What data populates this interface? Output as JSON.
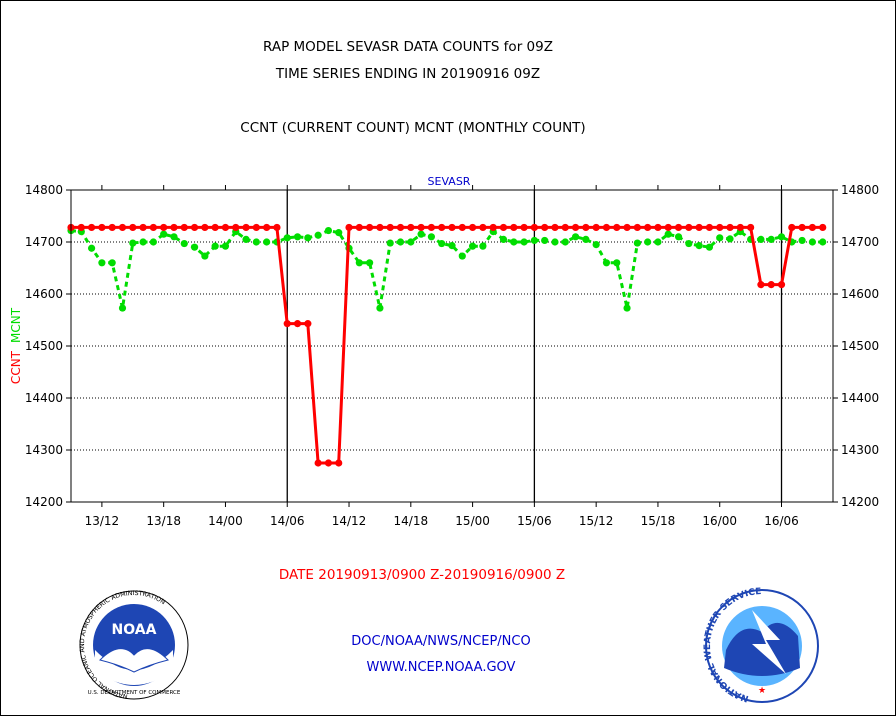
{
  "header": {
    "title_line1": "RAP MODEL SEVASR DATA COUNTS for 09Z",
    "title_line2": "TIME SERIES ENDING IN 20190916 09Z",
    "subtitle": "CCNT (CURRENT COUNT) MCNT (MONTHLY COUNT)"
  },
  "footer": {
    "date_range": "DATE 20190913/0900 Z-20190916/0900 Z",
    "credit": "DOC/NOAA/NWS/NCEP/NCO",
    "url": "WWW.NCEP.NOAA.GOV"
  },
  "logos": {
    "noaa": {
      "name": "noaa-logo",
      "text": "NOAA",
      "ring_text": "NATIONAL OCEANIC AND ATMOSPHERIC ADMINISTRATION",
      "bottom_text": "U.S. DEPARTMENT OF COMMERCE"
    },
    "nws": {
      "name": "nws-logo",
      "ring_text": "NATIONAL WEATHER SERVICE"
    }
  },
  "colors": {
    "ccnt": "#ff0000",
    "mcnt": "#00dd00",
    "plot_label": "#0000cc",
    "title": "#000000"
  },
  "chart_data": {
    "type": "line",
    "title": "SEVASR",
    "ylabel_series": [
      "CCNT",
      "MCNT"
    ],
    "ylim": [
      14200,
      14800
    ],
    "y_ticks": [
      14200,
      14300,
      14400,
      14500,
      14600,
      14700,
      14800
    ],
    "x_unit": "hours after 20190913/0900 Z",
    "xlim": [
      0,
      74
    ],
    "x_tick_labels": [
      {
        "label": "13/12",
        "x": 3
      },
      {
        "label": "13/18",
        "x": 9
      },
      {
        "label": "14/00",
        "x": 15
      },
      {
        "label": "14/06",
        "x": 21
      },
      {
        "label": "14/12",
        "x": 27
      },
      {
        "label": "14/18",
        "x": 33
      },
      {
        "label": "15/00",
        "x": 39
      },
      {
        "label": "15/06",
        "x": 45
      },
      {
        "label": "15/12",
        "x": 51
      },
      {
        "label": "15/18",
        "x": 57
      },
      {
        "label": "16/00",
        "x": 63
      },
      {
        "label": "16/06",
        "x": 69
      }
    ],
    "day_boundaries": [
      21,
      45,
      69
    ],
    "grid": "dotted horizontal",
    "series": [
      {
        "name": "CCNT",
        "color": "#ff0000",
        "style": "solid",
        "x": [
          0,
          1,
          2,
          3,
          4,
          5,
          6,
          7,
          8,
          9,
          10,
          11,
          12,
          13,
          14,
          15,
          16,
          17,
          18,
          19,
          20,
          21,
          22,
          23,
          24,
          25,
          26,
          27,
          28,
          29,
          30,
          31,
          32,
          33,
          34,
          35,
          36,
          37,
          38,
          39,
          40,
          41,
          42,
          43,
          44,
          45,
          46,
          47,
          48,
          49,
          50,
          51,
          52,
          53,
          54,
          55,
          56,
          57,
          58,
          59,
          60,
          61,
          62,
          63,
          64,
          65,
          66,
          67,
          68,
          69,
          70,
          71,
          72,
          73
        ],
        "values": [
          14728,
          14728,
          14728,
          14728,
          14728,
          14728,
          14728,
          14728,
          14728,
          14728,
          14728,
          14728,
          14728,
          14728,
          14728,
          14728,
          14728,
          14728,
          14728,
          14728,
          14728,
          14543,
          14543,
          14543,
          14275,
          14275,
          14275,
          14728,
          14728,
          14728,
          14728,
          14728,
          14728,
          14728,
          14728,
          14728,
          14728,
          14728,
          14728,
          14728,
          14728,
          14728,
          14728,
          14728,
          14728,
          14728,
          14728,
          14728,
          14728,
          14728,
          14728,
          14728,
          14728,
          14728,
          14728,
          14728,
          14728,
          14728,
          14728,
          14728,
          14728,
          14728,
          14728,
          14728,
          14728,
          14728,
          14728,
          14618,
          14618,
          14618,
          14728,
          14728,
          14728,
          14728
        ]
      },
      {
        "name": "MCNT",
        "color": "#00dd00",
        "style": "dashed",
        "x": [
          0,
          1,
          2,
          3,
          4,
          5,
          6,
          7,
          8,
          9,
          10,
          11,
          12,
          13,
          14,
          15,
          16,
          17,
          18,
          19,
          20,
          21,
          22,
          23,
          24,
          25,
          26,
          27,
          28,
          29,
          30,
          31,
          32,
          33,
          34,
          35,
          36,
          37,
          38,
          39,
          40,
          41,
          42,
          43,
          44,
          45,
          46,
          47,
          48,
          49,
          50,
          51,
          52,
          53,
          54,
          55,
          56,
          57,
          58,
          59,
          60,
          61,
          62,
          63,
          64,
          65,
          66,
          67,
          68,
          69,
          70,
          71,
          72,
          73
        ],
        "values": [
          14722,
          14720,
          14688,
          14660,
          14660,
          14573,
          14698,
          14700,
          14700,
          14715,
          14710,
          14697,
          14690,
          14673,
          14692,
          14692,
          14720,
          14705,
          14700,
          14700,
          14700,
          14708,
          14710,
          14708,
          14713,
          14722,
          14718,
          14688,
          14660,
          14660,
          14573,
          14698,
          14700,
          14700,
          14715,
          14710,
          14697,
          14693,
          14673,
          14692,
          14692,
          14720,
          14705,
          14700,
          14700,
          14703,
          14703,
          14700,
          14700,
          14710,
          14705,
          14695,
          14660,
          14660,
          14573,
          14698,
          14700,
          14700,
          14715,
          14710,
          14697,
          14693,
          14690,
          14708,
          14706,
          14720,
          14705,
          14705,
          14705,
          14710,
          14700,
          14703,
          14700,
          14700
        ]
      }
    ]
  }
}
